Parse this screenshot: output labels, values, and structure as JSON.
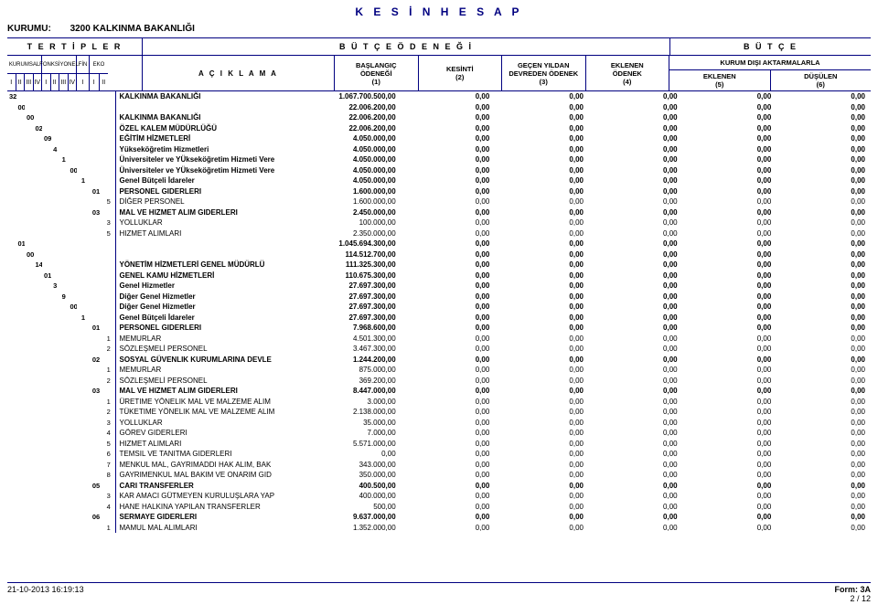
{
  "title": "K E S İ N   H E S A P",
  "kurumu_label": "KURUMU:",
  "kurumu_value": "3200 KALKINMA BAKANLIĞI",
  "tertipler": "T E R T İ P L E R",
  "butce_odenegi": "B Ü T Ç E   Ö D E N E Ğ İ",
  "butce": "B Ü T Ç E",
  "codegrp": {
    "kurumsal": "KURUMSAL",
    "fonksiyonel": "FONKSİYONEL",
    "fin": "FİN",
    "eko": "EKO"
  },
  "subcols": {
    "i": "I",
    "ii": "II",
    "iii": "III",
    "iv": "IV"
  },
  "aciklama": "A Ç I K L A M A",
  "numhdr": {
    "baslangic_top": "BAŞLANGIÇ",
    "baslangic_bot": "ÖDENEĞİ",
    "baslangic_n": "(1)",
    "kesinti": "KESİNTİ",
    "kesinti_n": "(2)",
    "gecen_top": "GEÇEN YILDAN",
    "gecen_bot": "DEVREDEN ÖDENEK",
    "gecen_n": "(3)",
    "eklenen_top": "EKLENEN",
    "eklenen_bot": "ÖDENEK",
    "eklenen_n": "(4)",
    "kurum_disi": "KURUM DIŞI AKTARMALARLA",
    "eklenen": "EKLENEN",
    "eklenen_sn": "(5)",
    "dusulen": "DÜŞÜLEN",
    "dusulen_n": "(6)"
  },
  "footer": {
    "ts": "21-10-2013 16:19:13",
    "form": "Form: 3A",
    "page": "2 / 12"
  },
  "rows": [
    {
      "c": [
        "32",
        "",
        "",
        "",
        "",
        "",
        "",
        "",
        "",
        "",
        ""
      ],
      "bold": true,
      "desc": "KALKINMA BAKANLIĞI",
      "v": [
        "1.067.700.500,00",
        "0,00",
        "0,00",
        "0,00",
        "0,00",
        "0,00"
      ]
    },
    {
      "c": [
        "",
        "00",
        "",
        "",
        "",
        "",
        "",
        "",
        "",
        "",
        ""
      ],
      "bold": true,
      "desc": "",
      "v": [
        "22.006.200,00",
        "0,00",
        "0,00",
        "0,00",
        "0,00",
        "0,00"
      ]
    },
    {
      "c": [
        "",
        "",
        "00",
        "",
        "",
        "",
        "",
        "",
        "",
        "",
        ""
      ],
      "bold": true,
      "desc": "KALKINMA BAKANLIĞI",
      "v": [
        "22.006.200,00",
        "0,00",
        "0,00",
        "0,00",
        "0,00",
        "0,00"
      ]
    },
    {
      "c": [
        "",
        "",
        "",
        "02",
        "",
        "",
        "",
        "",
        "",
        "",
        ""
      ],
      "bold": true,
      "desc": "ÖZEL KALEM MÜDÜRLÜĞÜ",
      "v": [
        "22.006.200,00",
        "0,00",
        "0,00",
        "0,00",
        "0,00",
        "0,00"
      ]
    },
    {
      "c": [
        "",
        "",
        "",
        "",
        "09",
        "",
        "",
        "",
        "",
        "",
        ""
      ],
      "bold": true,
      "desc": "EĞİTİM HİZMETLERİ",
      "v": [
        "4.050.000,00",
        "0,00",
        "0,00",
        "0,00",
        "0,00",
        "0,00"
      ]
    },
    {
      "c": [
        "",
        "",
        "",
        "",
        "",
        "4",
        "",
        "",
        "",
        "",
        ""
      ],
      "bold": true,
      "desc": "Yükseköğretim Hizmetleri",
      "v": [
        "4.050.000,00",
        "0,00",
        "0,00",
        "0,00",
        "0,00",
        "0,00"
      ]
    },
    {
      "c": [
        "",
        "",
        "",
        "",
        "",
        "",
        "1",
        "",
        "",
        "",
        ""
      ],
      "bold": true,
      "desc": "Üniversiteler ve YÜkseköğretim Hizmeti Vere",
      "v": [
        "4.050.000,00",
        "0,00",
        "0,00",
        "0,00",
        "0,00",
        "0,00"
      ]
    },
    {
      "c": [
        "",
        "",
        "",
        "",
        "",
        "",
        "",
        "00",
        "",
        "",
        ""
      ],
      "bold": true,
      "desc": "Üniversiteler ve YÜkseköğretim Hizmeti Vere",
      "v": [
        "4.050.000,00",
        "0,00",
        "0,00",
        "0,00",
        "0,00",
        "0,00"
      ]
    },
    {
      "c": [
        "",
        "",
        "",
        "",
        "",
        "",
        "",
        "",
        "1",
        "",
        ""
      ],
      "bold": true,
      "desc": "Genel Bütçeli İdareler",
      "v": [
        "4.050.000,00",
        "0,00",
        "0,00",
        "0,00",
        "0,00",
        "0,00"
      ]
    },
    {
      "c": [
        "",
        "",
        "",
        "",
        "",
        "",
        "",
        "",
        "",
        "01",
        ""
      ],
      "bold": true,
      "desc": "PERSONEL GIDERLERI",
      "v": [
        "1.600.000,00",
        "0,00",
        "0,00",
        "0,00",
        "0,00",
        "0,00"
      ]
    },
    {
      "c": [
        "",
        "",
        "",
        "",
        "",
        "",
        "",
        "",
        "",
        "",
        "5"
      ],
      "bold": false,
      "desc": "DİĞER PERSONEL",
      "v": [
        "1.600.000,00",
        "0,00",
        "0,00",
        "0,00",
        "0,00",
        "0,00"
      ]
    },
    {
      "c": [
        "",
        "",
        "",
        "",
        "",
        "",
        "",
        "",
        "",
        "03",
        ""
      ],
      "bold": true,
      "desc": "MAL VE HIZMET ALIM GIDERLERI",
      "v": [
        "2.450.000,00",
        "0,00",
        "0,00",
        "0,00",
        "0,00",
        "0,00"
      ]
    },
    {
      "c": [
        "",
        "",
        "",
        "",
        "",
        "",
        "",
        "",
        "",
        "",
        "3"
      ],
      "bold": false,
      "desc": "YOLLUKLAR",
      "v": [
        "100.000,00",
        "0,00",
        "0,00",
        "0,00",
        "0,00",
        "0,00"
      ]
    },
    {
      "c": [
        "",
        "",
        "",
        "",
        "",
        "",
        "",
        "",
        "",
        "",
        "5"
      ],
      "bold": false,
      "desc": "HIZMET ALIMLARI",
      "v": [
        "2.350.000,00",
        "0,00",
        "0,00",
        "0,00",
        "0,00",
        "0,00"
      ]
    },
    {
      "c": [
        "",
        "01",
        "",
        "",
        "",
        "",
        "",
        "",
        "",
        "",
        ""
      ],
      "bold": true,
      "desc": "",
      "v": [
        "1.045.694.300,00",
        "0,00",
        "0,00",
        "0,00",
        "0,00",
        "0,00"
      ]
    },
    {
      "c": [
        "",
        "",
        "00",
        "",
        "",
        "",
        "",
        "",
        "",
        "",
        ""
      ],
      "bold": true,
      "desc": "",
      "v": [
        "114.512.700,00",
        "0,00",
        "0,00",
        "0,00",
        "0,00",
        "0,00"
      ]
    },
    {
      "c": [
        "",
        "",
        "",
        "14",
        "",
        "",
        "",
        "",
        "",
        "",
        ""
      ],
      "bold": true,
      "desc": "YÖNETİM HİZMETLERİ GENEL MÜDÜRLÜ",
      "v": [
        "111.325.300,00",
        "0,00",
        "0,00",
        "0,00",
        "0,00",
        "0,00"
      ]
    },
    {
      "c": [
        "",
        "",
        "",
        "",
        "01",
        "",
        "",
        "",
        "",
        "",
        ""
      ],
      "bold": true,
      "desc": "GENEL KAMU HİZMETLERİ",
      "v": [
        "110.675.300,00",
        "0,00",
        "0,00",
        "0,00",
        "0,00",
        "0,00"
      ]
    },
    {
      "c": [
        "",
        "",
        "",
        "",
        "",
        "3",
        "",
        "",
        "",
        "",
        ""
      ],
      "bold": true,
      "desc": "Genel Hizmetler",
      "v": [
        "27.697.300,00",
        "0,00",
        "0,00",
        "0,00",
        "0,00",
        "0,00"
      ]
    },
    {
      "c": [
        "",
        "",
        "",
        "",
        "",
        "",
        "9",
        "",
        "",
        "",
        ""
      ],
      "bold": true,
      "desc": "Diğer Genel Hizmetler",
      "v": [
        "27.697.300,00",
        "0,00",
        "0,00",
        "0,00",
        "0,00",
        "0,00"
      ]
    },
    {
      "c": [
        "",
        "",
        "",
        "",
        "",
        "",
        "",
        "00",
        "",
        "",
        ""
      ],
      "bold": true,
      "desc": "Diğer Genel Hizmetler",
      "v": [
        "27.697.300,00",
        "0,00",
        "0,00",
        "0,00",
        "0,00",
        "0,00"
      ]
    },
    {
      "c": [
        "",
        "",
        "",
        "",
        "",
        "",
        "",
        "",
        "1",
        "",
        ""
      ],
      "bold": true,
      "desc": "Genel Bütçeli İdareler",
      "v": [
        "27.697.300,00",
        "0,00",
        "0,00",
        "0,00",
        "0,00",
        "0,00"
      ]
    },
    {
      "c": [
        "",
        "",
        "",
        "",
        "",
        "",
        "",
        "",
        "",
        "01",
        ""
      ],
      "bold": true,
      "desc": "PERSONEL GIDERLERI",
      "v": [
        "7.968.600,00",
        "0,00",
        "0,00",
        "0,00",
        "0,00",
        "0,00"
      ]
    },
    {
      "c": [
        "",
        "",
        "",
        "",
        "",
        "",
        "",
        "",
        "",
        "",
        "1"
      ],
      "bold": false,
      "desc": "MEMURLAR",
      "v": [
        "4.501.300,00",
        "0,00",
        "0,00",
        "0,00",
        "0,00",
        "0,00"
      ]
    },
    {
      "c": [
        "",
        "",
        "",
        "",
        "",
        "",
        "",
        "",
        "",
        "",
        "2"
      ],
      "bold": false,
      "desc": "SÖZLEŞMELİ PERSONEL",
      "v": [
        "3.467.300,00",
        "0,00",
        "0,00",
        "0,00",
        "0,00",
        "0,00"
      ]
    },
    {
      "c": [
        "",
        "",
        "",
        "",
        "",
        "",
        "",
        "",
        "",
        "02",
        ""
      ],
      "bold": true,
      "desc": "SOSYAL GÜVENLIK KURUMLARINA DEVLE",
      "v": [
        "1.244.200,00",
        "0,00",
        "0,00",
        "0,00",
        "0,00",
        "0,00"
      ]
    },
    {
      "c": [
        "",
        "",
        "",
        "",
        "",
        "",
        "",
        "",
        "",
        "",
        "1"
      ],
      "bold": false,
      "desc": "MEMURLAR",
      "v": [
        "875.000,00",
        "0,00",
        "0,00",
        "0,00",
        "0,00",
        "0,00"
      ]
    },
    {
      "c": [
        "",
        "",
        "",
        "",
        "",
        "",
        "",
        "",
        "",
        "",
        "2"
      ],
      "bold": false,
      "desc": "SÖZLEŞMELİ PERSONEL",
      "v": [
        "369.200,00",
        "0,00",
        "0,00",
        "0,00",
        "0,00",
        "0,00"
      ]
    },
    {
      "c": [
        "",
        "",
        "",
        "",
        "",
        "",
        "",
        "",
        "",
        "03",
        ""
      ],
      "bold": true,
      "desc": "MAL VE HIZMET ALIM GIDERLERI",
      "v": [
        "8.447.000,00",
        "0,00",
        "0,00",
        "0,00",
        "0,00",
        "0,00"
      ]
    },
    {
      "c": [
        "",
        "",
        "",
        "",
        "",
        "",
        "",
        "",
        "",
        "",
        "1"
      ],
      "bold": false,
      "desc": "ÜRETIME YÖNELIK MAL VE MALZEME ALIM",
      "v": [
        "3.000,00",
        "0,00",
        "0,00",
        "0,00",
        "0,00",
        "0,00"
      ]
    },
    {
      "c": [
        "",
        "",
        "",
        "",
        "",
        "",
        "",
        "",
        "",
        "",
        "2"
      ],
      "bold": false,
      "desc": "TÜKETIME YÖNELIK MAL VE MALZEME ALIM",
      "v": [
        "2.138.000,00",
        "0,00",
        "0,00",
        "0,00",
        "0,00",
        "0,00"
      ]
    },
    {
      "c": [
        "",
        "",
        "",
        "",
        "",
        "",
        "",
        "",
        "",
        "",
        "3"
      ],
      "bold": false,
      "desc": "YOLLUKLAR",
      "v": [
        "35.000,00",
        "0,00",
        "0,00",
        "0,00",
        "0,00",
        "0,00"
      ]
    },
    {
      "c": [
        "",
        "",
        "",
        "",
        "",
        "",
        "",
        "",
        "",
        "",
        "4"
      ],
      "bold": false,
      "desc": "GÖREV GIDERLERI",
      "v": [
        "7.000,00",
        "0,00",
        "0,00",
        "0,00",
        "0,00",
        "0,00"
      ]
    },
    {
      "c": [
        "",
        "",
        "",
        "",
        "",
        "",
        "",
        "",
        "",
        "",
        "5"
      ],
      "bold": false,
      "desc": "HIZMET ALIMLARI",
      "v": [
        "5.571.000,00",
        "0,00",
        "0,00",
        "0,00",
        "0,00",
        "0,00"
      ]
    },
    {
      "c": [
        "",
        "",
        "",
        "",
        "",
        "",
        "",
        "",
        "",
        "",
        "6"
      ],
      "bold": false,
      "desc": "TEMSIL VE TANITMA GIDERLERI",
      "v": [
        "0,00",
        "0,00",
        "0,00",
        "0,00",
        "0,00",
        "0,00"
      ]
    },
    {
      "c": [
        "",
        "",
        "",
        "",
        "",
        "",
        "",
        "",
        "",
        "",
        "7"
      ],
      "bold": false,
      "desc": "MENKUL MAL, GAYRIMADDI HAK ALIM, BAK",
      "v": [
        "343.000,00",
        "0,00",
        "0,00",
        "0,00",
        "0,00",
        "0,00"
      ]
    },
    {
      "c": [
        "",
        "",
        "",
        "",
        "",
        "",
        "",
        "",
        "",
        "",
        "8"
      ],
      "bold": false,
      "desc": "GAYRIMENKUL MAL BAKIM VE ONARIM GID",
      "v": [
        "350.000,00",
        "0,00",
        "0,00",
        "0,00",
        "0,00",
        "0,00"
      ]
    },
    {
      "c": [
        "",
        "",
        "",
        "",
        "",
        "",
        "",
        "",
        "",
        "05",
        ""
      ],
      "bold": true,
      "desc": "CARI TRANSFERLER",
      "v": [
        "400.500,00",
        "0,00",
        "0,00",
        "0,00",
        "0,00",
        "0,00"
      ]
    },
    {
      "c": [
        "",
        "",
        "",
        "",
        "",
        "",
        "",
        "",
        "",
        "",
        "3"
      ],
      "bold": false,
      "desc": "KAR AMACI GÜTMEYEN KURULUŞLARA YAP",
      "v": [
        "400.000,00",
        "0,00",
        "0,00",
        "0,00",
        "0,00",
        "0,00"
      ]
    },
    {
      "c": [
        "",
        "",
        "",
        "",
        "",
        "",
        "",
        "",
        "",
        "",
        "4"
      ],
      "bold": false,
      "desc": "HANE HALKINA YAPILAN TRANSFERLER",
      "v": [
        "500,00",
        "0,00",
        "0,00",
        "0,00",
        "0,00",
        "0,00"
      ]
    },
    {
      "c": [
        "",
        "",
        "",
        "",
        "",
        "",
        "",
        "",
        "",
        "06",
        ""
      ],
      "bold": true,
      "desc": "SERMAYE GIDERLERI",
      "v": [
        "9.637.000,00",
        "0,00",
        "0,00",
        "0,00",
        "0,00",
        "0,00"
      ]
    },
    {
      "c": [
        "",
        "",
        "",
        "",
        "",
        "",
        "",
        "",
        "",
        "",
        "1"
      ],
      "bold": false,
      "desc": "MAMUL MAL ALIMLARI",
      "v": [
        "1.352.000,00",
        "0,00",
        "0,00",
        "0,00",
        "0,00",
        "0,00"
      ]
    }
  ]
}
